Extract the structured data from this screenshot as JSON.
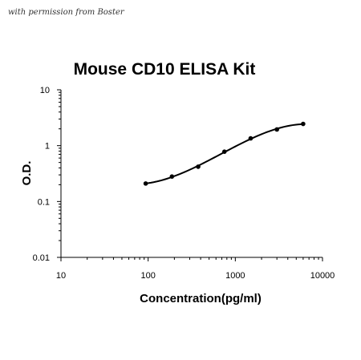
{
  "watermark": "with permission from Boster",
  "chart_data": {
    "type": "scatter",
    "title": "Mouse CD10 ELISA Kit",
    "xlabel": "Concentration(pg/ml)",
    "ylabel": "O.D.",
    "x_scale": "log",
    "y_scale": "log",
    "xlim": [
      10,
      10000
    ],
    "ylim": [
      0.01,
      10
    ],
    "x_ticks": [
      "10",
      "100",
      "1000",
      "10000"
    ],
    "y_ticks": [
      "0.01",
      "0.1",
      "1",
      "10"
    ],
    "grid": false,
    "series": [
      {
        "x": [
          93.75,
          187.5,
          375,
          750,
          1500,
          3000,
          6000
        ],
        "y": [
          0.21,
          0.28,
          0.42,
          0.78,
          1.35,
          1.95,
          2.45
        ],
        "fit_line": true,
        "color": "#000000"
      }
    ]
  }
}
